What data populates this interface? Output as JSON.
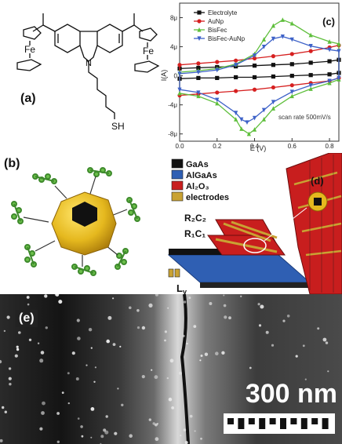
{
  "figure": {
    "labels": {
      "a": "(a)",
      "b": "(b)",
      "c": "(c)",
      "d": "(d)",
      "e": "(e)"
    }
  },
  "molecule": {
    "fe_left": "Fe",
    "fe_right": "Fe",
    "nitrogen": "N",
    "thiol": "SH"
  },
  "layers": {
    "legend": [
      {
        "label": "GaAs",
        "color": "#111111"
      },
      {
        "label": "AlGaAs",
        "color": "#2f5fb3"
      },
      {
        "label": "Al₂O₃",
        "color": "#c81e1e"
      },
      {
        "label": "electrodes",
        "color": "#c9a233"
      }
    ],
    "r2c2": "R₂C₂",
    "r1c1": "R₁C₁",
    "ly": "L",
    "ly_sub": "y"
  },
  "micrograph": {
    "scale_text": "300 nm"
  },
  "chart_data": {
    "type": "line",
    "xlabel": "E (V)",
    "ylabel": "I(A)",
    "xlim": [
      0.0,
      0.85
    ],
    "ylim": [
      -9,
      10
    ],
    "xticks": [
      0.0,
      0.2,
      0.4,
      0.6,
      0.8
    ],
    "xtick_labels": [
      "0.0",
      "0.2",
      "0.4",
      "0.6",
      "0.8"
    ],
    "yticks": [
      8,
      4,
      0,
      -4,
      -8
    ],
    "ytick_labels": [
      "8μ",
      "4μ",
      "0",
      "-4μ",
      "-8μ"
    ],
    "annotation": "scan rate 500mV/s",
    "legend_position": "top-left",
    "series": [
      {
        "name": "Electrolyte",
        "color": "#111111",
        "marker": "square",
        "forward": [
          [
            0.0,
            1.0
          ],
          [
            0.1,
            1.1
          ],
          [
            0.2,
            1.2
          ],
          [
            0.3,
            1.3
          ],
          [
            0.4,
            1.4
          ],
          [
            0.5,
            1.5
          ],
          [
            0.6,
            1.6
          ],
          [
            0.7,
            1.8
          ],
          [
            0.8,
            2.0
          ],
          [
            0.85,
            2.2
          ]
        ],
        "reverse": [
          [
            0.85,
            0.4
          ],
          [
            0.8,
            0.2
          ],
          [
            0.7,
            0.1
          ],
          [
            0.6,
            0.0
          ],
          [
            0.5,
            -0.1
          ],
          [
            0.4,
            -0.2
          ],
          [
            0.3,
            -0.2
          ],
          [
            0.2,
            -0.3
          ],
          [
            0.1,
            -0.3
          ],
          [
            0.0,
            -0.4
          ]
        ]
      },
      {
        "name": "AuNp",
        "color": "#d62020",
        "marker": "circle",
        "forward": [
          [
            0.0,
            1.5
          ],
          [
            0.1,
            1.7
          ],
          [
            0.2,
            1.9
          ],
          [
            0.3,
            2.1
          ],
          [
            0.4,
            2.4
          ],
          [
            0.5,
            2.7
          ],
          [
            0.6,
            3.0
          ],
          [
            0.7,
            3.4
          ],
          [
            0.8,
            3.9
          ],
          [
            0.85,
            4.2
          ]
        ],
        "reverse": [
          [
            0.85,
            -0.3
          ],
          [
            0.8,
            -0.7
          ],
          [
            0.7,
            -1.0
          ],
          [
            0.6,
            -1.3
          ],
          [
            0.5,
            -1.6
          ],
          [
            0.4,
            -1.9
          ],
          [
            0.3,
            -2.1
          ],
          [
            0.2,
            -2.3
          ],
          [
            0.1,
            -2.5
          ],
          [
            0.0,
            -2.7
          ]
        ]
      },
      {
        "name": "BisFec",
        "color": "#5fbf3c",
        "marker": "triangle-up",
        "forward": [
          [
            0.0,
            0.5
          ],
          [
            0.1,
            0.7
          ],
          [
            0.2,
            1.0
          ],
          [
            0.3,
            1.6
          ],
          [
            0.4,
            3.0
          ],
          [
            0.45,
            5.0
          ],
          [
            0.5,
            6.9
          ],
          [
            0.55,
            7.7
          ],
          [
            0.6,
            7.2
          ],
          [
            0.7,
            5.6
          ],
          [
            0.8,
            4.7
          ],
          [
            0.85,
            4.4
          ]
        ],
        "reverse": [
          [
            0.85,
            -0.5
          ],
          [
            0.8,
            -1.0
          ],
          [
            0.7,
            -1.8
          ],
          [
            0.6,
            -2.8
          ],
          [
            0.5,
            -4.5
          ],
          [
            0.45,
            -6.0
          ],
          [
            0.4,
            -7.4
          ],
          [
            0.37,
            -8.0
          ],
          [
            0.33,
            -7.3
          ],
          [
            0.3,
            -6.0
          ],
          [
            0.2,
            -3.8
          ],
          [
            0.1,
            -2.8
          ],
          [
            0.0,
            -2.4
          ]
        ]
      },
      {
        "name": "BisFec-AuNp",
        "color": "#3e62c8",
        "marker": "triangle-down",
        "forward": [
          [
            0.0,
            0.3
          ],
          [
            0.1,
            0.5
          ],
          [
            0.2,
            0.8
          ],
          [
            0.3,
            1.5
          ],
          [
            0.4,
            2.8
          ],
          [
            0.45,
            4.0
          ],
          [
            0.5,
            5.1
          ],
          [
            0.55,
            5.4
          ],
          [
            0.6,
            5.0
          ],
          [
            0.7,
            4.1
          ],
          [
            0.8,
            3.6
          ],
          [
            0.85,
            3.4
          ]
        ],
        "reverse": [
          [
            0.85,
            -0.3
          ],
          [
            0.8,
            -0.7
          ],
          [
            0.7,
            -1.3
          ],
          [
            0.6,
            -2.2
          ],
          [
            0.5,
            -3.6
          ],
          [
            0.45,
            -4.7
          ],
          [
            0.4,
            -5.8
          ],
          [
            0.36,
            -6.4
          ],
          [
            0.33,
            -6.0
          ],
          [
            0.3,
            -5.1
          ],
          [
            0.2,
            -3.3
          ],
          [
            0.1,
            -2.3
          ],
          [
            0.0,
            -1.9
          ]
        ]
      }
    ]
  }
}
